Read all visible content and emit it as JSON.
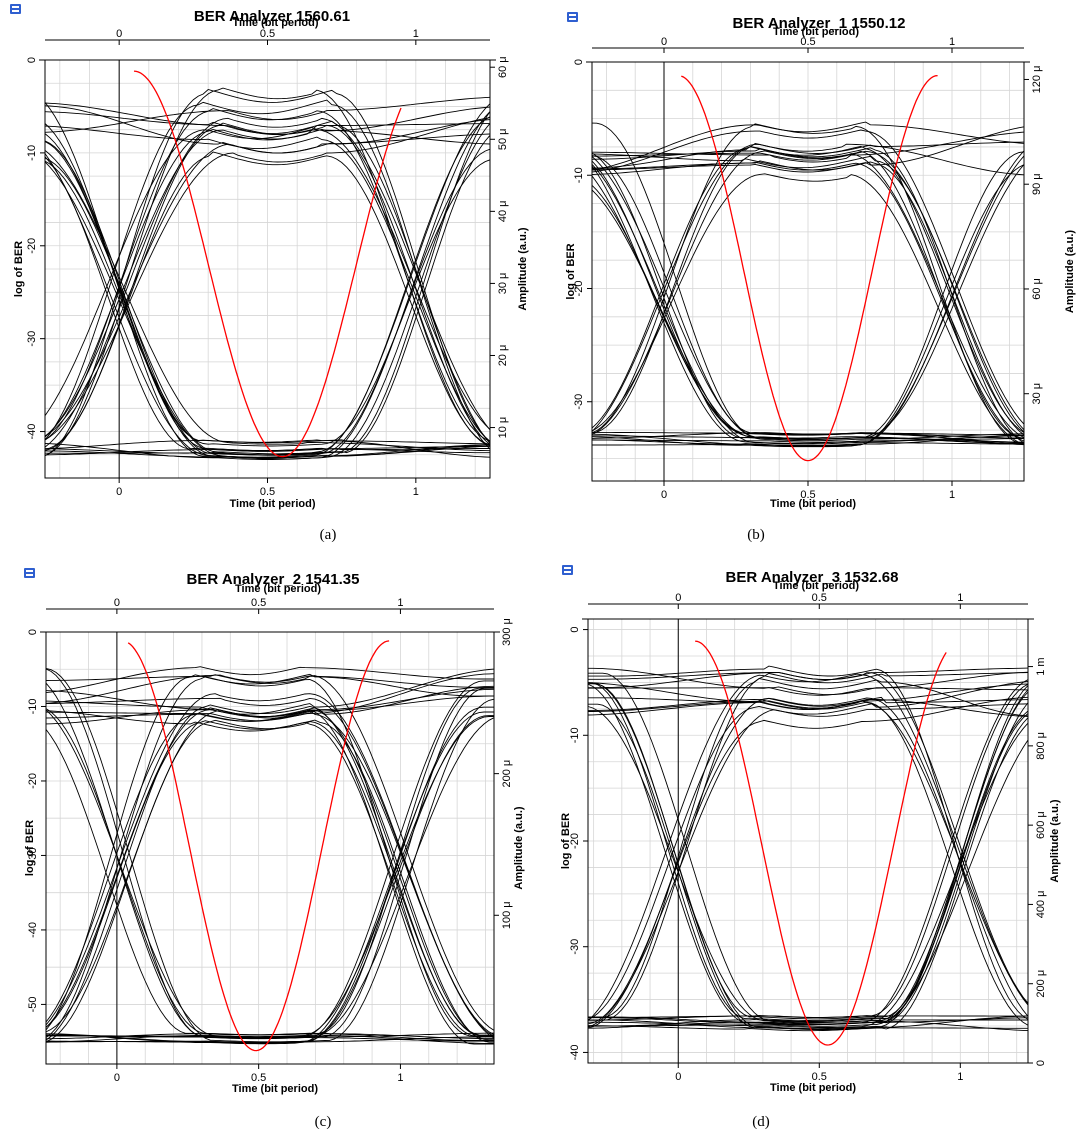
{
  "charts": [
    {
      "caption": "(a)",
      "title": "BER Analyzer 1560.61",
      "x_label_top": "Time (bit period)",
      "x_label_bottom": "Time (bit period)",
      "y_label_left": "log of BER",
      "y_label_right": "Amplitude (a.u.)",
      "x_ticks": [
        "0",
        "0.5",
        "1"
      ],
      "y_left_ticks": [
        "0",
        "-10",
        "-20",
        "-30",
        "-40"
      ],
      "y_right_ticks": [
        "10 μ",
        "20 μ",
        "30 μ",
        "40 μ",
        "50 μ",
        "60 μ"
      ]
    },
    {
      "caption": "(b)",
      "title": "BER Analyzer_1 1550.12",
      "x_label_top": "Time (bit period)",
      "x_label_bottom": "Time (bit period)",
      "y_label_left": "log of BER",
      "y_label_right": "Amplitude (a.u.)",
      "x_ticks": [
        "0",
        "0.5",
        "1"
      ],
      "y_left_ticks": [
        "0",
        "-10",
        "-20",
        "-30"
      ],
      "y_right_ticks": [
        "30 μ",
        "60 μ",
        "90 μ",
        "120 μ"
      ]
    },
    {
      "caption": "(c)",
      "title": "BER Analyzer_2 1541.35",
      "x_label_top": "Time (bit period)",
      "x_label_bottom": "Time (bit period)",
      "y_label_left": "log of BER",
      "y_label_right": "Amplitude (a.u.)",
      "x_ticks": [
        "0",
        "0.5",
        "1"
      ],
      "y_left_ticks": [
        "0",
        "-10",
        "-20",
        "-30",
        "-40",
        "-50"
      ],
      "y_right_ticks": [
        "100 μ",
        "200 μ",
        "300 μ"
      ]
    },
    {
      "caption": "(d)",
      "title": "BER Analyzer_3 1532.68",
      "x_label_top": "Time (bit period)",
      "x_label_bottom": "Time (bit period)",
      "y_label_left": "log of BER",
      "y_label_right": "Amplitude (a.u.)",
      "x_ticks": [
        "0",
        "0.5",
        "1"
      ],
      "y_left_ticks": [
        "0",
        "-10",
        "-20",
        "-30",
        "-40"
      ],
      "y_right_ticks": [
        "0",
        "200 μ",
        "400 μ",
        "600 μ",
        "800 μ",
        "1 m"
      ]
    }
  ],
  "chart_data": [
    {
      "type": "line",
      "title": "BER Analyzer 1560.61",
      "xlabel": "Time (bit period)",
      "ylabel": "log of BER",
      "y2label": "Amplitude (a.u.)",
      "xlim": [
        -0.25,
        1.25
      ],
      "ylim": [
        -45,
        0
      ],
      "y2lim": [
        3,
        61
      ],
      "x_ticks": [
        0,
        0.5,
        1
      ],
      "y_ticks": [
        0,
        -10,
        -20,
        -30,
        -40
      ],
      "y2_ticks": [
        10,
        20,
        30,
        40,
        50,
        60
      ],
      "y2_unit": "μ",
      "grid": true,
      "ber_curve": {
        "color": "#ff0000",
        "center": 0.55,
        "min_log_ber": -42.7,
        "edge_log_ber": -1.2,
        "x_range": [
          0.05,
          0.95
        ]
      },
      "eye": {
        "color": "#000000",
        "crossing_left": 0.0,
        "crossing_right": 1.0,
        "crossing_amp": 26,
        "one_level": 52,
        "zero_level": 7,
        "one_spread": 5,
        "zero_spread": 1.2,
        "traces": 34
      }
    },
    {
      "type": "line",
      "title": "BER Analyzer_1 1550.12",
      "xlabel": "Time (bit period)",
      "ylabel": "log of BER",
      "y2label": "Amplitude (a.u.)",
      "xlim": [
        -0.25,
        1.25
      ],
      "ylim": [
        -37,
        0
      ],
      "y2lim": [
        5,
        125
      ],
      "x_ticks": [
        0,
        0.5,
        1
      ],
      "y_ticks": [
        0,
        -10,
        -20,
        -30
      ],
      "y2_ticks": [
        30,
        60,
        90,
        120
      ],
      "y2_unit": "μ",
      "grid": true,
      "ber_curve": {
        "color": "#ff0000",
        "center": 0.5,
        "min_log_ber": -35.2,
        "edge_log_ber": -1.2,
        "x_range": [
          0.06,
          0.95
        ]
      },
      "eye": {
        "color": "#000000",
        "crossing_left": 0.0,
        "crossing_right": 1.0,
        "crossing_amp": 59,
        "one_level": 100,
        "zero_level": 17,
        "one_spread": 8,
        "zero_spread": 2,
        "traces": 34
      }
    },
    {
      "type": "line",
      "title": "BER Analyzer_2 1541.35",
      "xlabel": "Time (bit period)",
      "ylabel": "log of BER",
      "y2label": "Amplitude (a.u.)",
      "xlim": [
        -0.25,
        1.33
      ],
      "ylim": [
        -58,
        0
      ],
      "y2lim": [
        -5,
        300
      ],
      "x_ticks": [
        0,
        0.5,
        1
      ],
      "y_ticks": [
        0,
        -10,
        -20,
        -30,
        -40,
        -50
      ],
      "y2_ticks": [
        100,
        200,
        300
      ],
      "y2_unit": "μ",
      "grid": true,
      "ber_curve": {
        "color": "#ff0000",
        "center": 0.49,
        "min_log_ber": -56.2,
        "edge_log_ber": -1.2,
        "x_range": [
          0.04,
          0.96
        ]
      },
      "eye": {
        "color": "#000000",
        "crossing_left": 0.0,
        "crossing_right": 1.0,
        "crossing_amp": 130,
        "one_level": 255,
        "zero_level": 13,
        "one_spread": 20,
        "zero_spread": 4,
        "traces": 34
      }
    },
    {
      "type": "line",
      "title": "BER Analyzer_3 1532.68",
      "xlabel": "Time (bit period)",
      "ylabel": "log of BER",
      "y2label": "Amplitude (a.u.)",
      "xlim": [
        -0.32,
        1.24
      ],
      "ylim": [
        -41,
        1
      ],
      "y2lim": [
        0,
        1120
      ],
      "x_ticks": [
        0,
        0.5,
        1
      ],
      "y_ticks": [
        0,
        -10,
        -20,
        -30,
        -40
      ],
      "y2_ticks": [
        0,
        200,
        400,
        600,
        800,
        1000
      ],
      "y2_unit": "μ",
      "grid": true,
      "ber_curve": {
        "color": "#ff0000",
        "center": 0.53,
        "min_log_ber": -39.3,
        "edge_log_ber": -1.1,
        "x_range": [
          0.06,
          0.95
        ]
      },
      "eye": {
        "color": "#000000",
        "crossing_left": 0.0,
        "crossing_right": 1.0,
        "crossing_amp": 480,
        "one_level": 930,
        "zero_level": 100,
        "one_spread": 70,
        "zero_spread": 20,
        "traces": 34
      }
    }
  ]
}
